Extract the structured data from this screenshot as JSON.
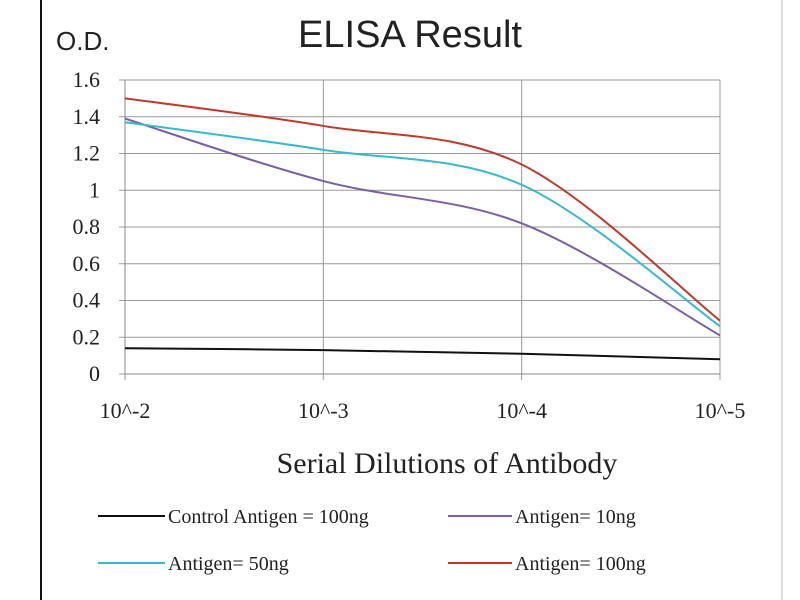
{
  "chart_data": {
    "type": "line",
    "title": "ELISA Result",
    "ylabel": "O.D.",
    "xlabel": "Serial Dilutions of Antibody",
    "categories": [
      "10^-2",
      "10^-3",
      "10^-4",
      "10^-5"
    ],
    "yticks": [
      "0",
      "0.2",
      "0.4",
      "0.6",
      "0.8",
      "1",
      "1.2",
      "1.4",
      "1.6"
    ],
    "ylim": [
      0,
      1.6
    ],
    "grid": true,
    "legend_position": "bottom",
    "series": [
      {
        "name": "Control Antigen = 100ng",
        "color": "#111111",
        "values": [
          0.14,
          0.13,
          0.11,
          0.08
        ]
      },
      {
        "name": "Antigen= 10ng",
        "color": "#7b5ea7",
        "values": [
          1.39,
          1.05,
          0.82,
          0.21
        ]
      },
      {
        "name": "Antigen= 50ng",
        "color": "#3ab8d0",
        "values": [
          1.37,
          1.22,
          1.03,
          0.26
        ]
      },
      {
        "name": "Antigen= 100ng",
        "color": "#c0392b",
        "values": [
          1.5,
          1.35,
          1.14,
          0.29
        ]
      }
    ]
  }
}
